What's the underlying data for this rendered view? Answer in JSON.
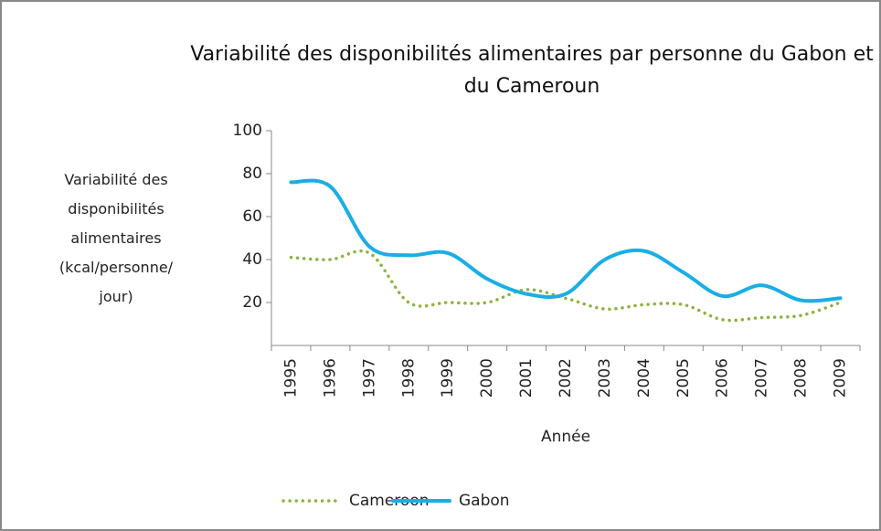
{
  "chart_data": {
    "type": "line",
    "title": "Variabilité des disponibilités alimentaires par personne du Gabon et du Cameroun",
    "x_label": "Année",
    "y_label": "Variabilité des disponibilités alimentaires (kcal/personne/ jour)",
    "categories": [
      "1995",
      "1996",
      "1997",
      "1998",
      "1999",
      "2000",
      "2001",
      "2002",
      "2003",
      "2004",
      "2005",
      "2006",
      "2007",
      "2008",
      "2009"
    ],
    "series": [
      {
        "name": "Cameroon",
        "color": "#8db33f",
        "dash": "dotted",
        "values": [
          41,
          40,
          43,
          20,
          20,
          20,
          26,
          22,
          17,
          19,
          19,
          12,
          13,
          14,
          20
        ]
      },
      {
        "name": "Gabon",
        "color": "#1aaee5",
        "dash": "solid",
        "values": [
          76,
          74,
          46,
          42,
          43,
          31,
          24,
          24,
          40,
          44,
          34,
          23,
          28,
          21,
          22
        ]
      }
    ],
    "ylim": [
      0,
      100
    ],
    "yticks": [
      20,
      40,
      60,
      80,
      100
    ],
    "grid": false,
    "legend": "bottom"
  }
}
